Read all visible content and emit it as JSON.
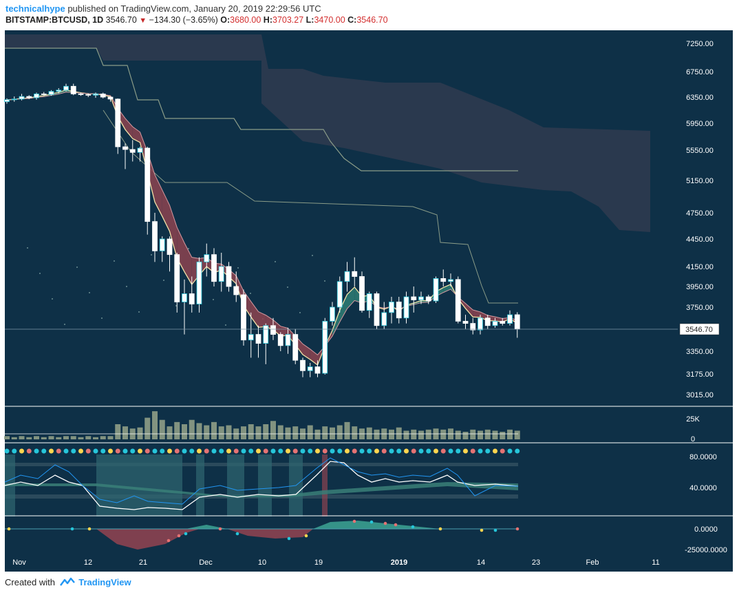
{
  "header": {
    "author": "technicalhype",
    "published_text": "published on TradingView.com, January 20, 2019 22:29:56 UTC",
    "symbol": "BITSTAMP:BTCUSD, 1D",
    "last": "3546.70",
    "change": "−134.30 (−3.65%)",
    "o_label": "O:",
    "o": "3680.00",
    "h_label": "H:",
    "h": "3703.27",
    "l_label": "L:",
    "l": "3470.00",
    "c_label": "C:",
    "c": "3546.70"
  },
  "footer": {
    "created_with": "Created with",
    "brand": "TradingView"
  },
  "colors": {
    "panel_bg": "#0e3047",
    "cloud": "#2d3b4f",
    "up_candle": "#ffffff",
    "down_candle": "#ffffff",
    "candle_border_up": "#26c6da",
    "ema_fill_up": "#2e7d74",
    "ema_fill_down": "#8c4350",
    "volume": "#8f9f86",
    "price_tag_bg": "#ffffff"
  },
  "chart_data": {
    "type": "candlestick",
    "symbol": "BITSTAMP:BTCUSD",
    "interval": "1D",
    "price_axis_ticks": [
      "7250.00",
      "6750.00",
      "6350.00",
      "5950.00",
      "5550.00",
      "5150.00",
      "4750.00",
      "4450.00",
      "4150.00",
      "3950.00",
      "3750.00",
      "3350.00",
      "3175.00",
      "3015.00"
    ],
    "last_price_tag": "3546.70",
    "volume_axis_ticks": [
      "25K",
      "0"
    ],
    "oscillator_axis_ticks": [
      "80.0000",
      "40.0000"
    ],
    "momentum_axis_ticks": [
      "0.0000",
      "-25000.0000"
    ],
    "x_tick_labels": [
      "Nov",
      "12",
      "21",
      "Dec",
      "10",
      "19",
      "2019",
      "14",
      "23",
      "Feb",
      "11"
    ],
    "candles": [
      [
        6280,
        6330,
        6250,
        6310
      ],
      [
        6310,
        6360,
        6280,
        6320
      ],
      [
        6320,
        6400,
        6300,
        6360
      ],
      [
        6360,
        6380,
        6320,
        6340
      ],
      [
        6340,
        6420,
        6310,
        6400
      ],
      [
        6400,
        6430,
        6370,
        6390
      ],
      [
        6390,
        6460,
        6370,
        6440
      ],
      [
        6440,
        6490,
        6410,
        6460
      ],
      [
        6460,
        6560,
        6440,
        6520
      ],
      [
        6520,
        6560,
        6380,
        6400
      ],
      [
        6400,
        6420,
        6370,
        6390
      ],
      [
        6390,
        6410,
        6350,
        6380
      ],
      [
        6380,
        6420,
        6340,
        6400
      ],
      [
        6400,
        6420,
        6330,
        6350
      ],
      [
        6350,
        6360,
        6280,
        6320
      ],
      [
        6320,
        6330,
        5500,
        5600
      ],
      [
        5600,
        5650,
        5300,
        5560
      ],
      [
        5560,
        5700,
        5400,
        5520
      ],
      [
        5520,
        5600,
        5400,
        5580
      ],
      [
        5580,
        5600,
        4500,
        4650
      ],
      [
        4650,
        4750,
        4200,
        4320
      ],
      [
        4320,
        4480,
        4200,
        4450
      ],
      [
        4450,
        4480,
        4100,
        4280
      ],
      [
        4280,
        4300,
        3700,
        3800
      ],
      [
        3800,
        4020,
        3500,
        3880
      ],
      [
        3880,
        4050,
        3700,
        3780
      ],
      [
        3780,
        4250,
        3700,
        4200
      ],
      [
        4200,
        4400,
        4050,
        4280
      ],
      [
        4280,
        4350,
        3950,
        4000
      ],
      [
        4000,
        4300,
        3900,
        4150
      ],
      [
        4150,
        4200,
        3900,
        3950
      ],
      [
        3950,
        4100,
        3800,
        3870
      ],
      [
        3870,
        3920,
        3400,
        3450
      ],
      [
        3450,
        3700,
        3300,
        3500
      ],
      [
        3500,
        3580,
        3300,
        3420
      ],
      [
        3420,
        3600,
        3250,
        3580
      ],
      [
        3580,
        3650,
        3450,
        3500
      ],
      [
        3500,
        3520,
        3350,
        3400
      ],
      [
        3400,
        3560,
        3330,
        3500
      ],
      [
        3500,
        3550,
        3250,
        3280
      ],
      [
        3280,
        3300,
        3150,
        3200
      ],
      [
        3200,
        3260,
        3150,
        3230
      ],
      [
        3230,
        3280,
        3150,
        3180
      ],
      [
        3180,
        3650,
        3170,
        3620
      ],
      [
        3620,
        3800,
        3580,
        3750
      ],
      [
        3750,
        4050,
        3700,
        4000
      ],
      [
        4000,
        4200,
        3900,
        4100
      ],
      [
        4100,
        4250,
        3950,
        4050
      ],
      [
        4050,
        4100,
        3700,
        3720
      ],
      [
        3720,
        3900,
        3650,
        3880
      ],
      [
        3880,
        3900,
        3550,
        3580
      ],
      [
        3580,
        3800,
        3550,
        3700
      ],
      [
        3700,
        3850,
        3600,
        3800
      ],
      [
        3800,
        3850,
        3600,
        3650
      ],
      [
        3650,
        3900,
        3600,
        3850
      ],
      [
        3850,
        3950,
        3700,
        3820
      ],
      [
        3820,
        3900,
        3780,
        3850
      ],
      [
        3850,
        3870,
        3780,
        3810
      ],
      [
        3810,
        4050,
        3790,
        4030
      ],
      [
        4030,
        4120,
        3950,
        4000
      ],
      [
        4000,
        4080,
        3950,
        4020
      ],
      [
        4020,
        4050,
        3600,
        3620
      ],
      [
        3620,
        3680,
        3550,
        3600
      ],
      [
        3600,
        3650,
        3500,
        3540
      ],
      [
        3540,
        3680,
        3500,
        3650
      ],
      [
        3650,
        3680,
        3550,
        3580
      ],
      [
        3580,
        3650,
        3560,
        3620
      ],
      [
        3620,
        3650,
        3580,
        3600
      ],
      [
        3600,
        3720,
        3580,
        3680
      ],
      [
        3680,
        3703.27,
        3470,
        3546.7
      ]
    ],
    "volume_bars": [
      3,
      2,
      3,
      2,
      3,
      2,
      3,
      2,
      3,
      3,
      2,
      3,
      2,
      3,
      3,
      14,
      12,
      10,
      11,
      20,
      26,
      18,
      12,
      16,
      14,
      18,
      15,
      13,
      16,
      12,
      13,
      10,
      12,
      14,
      12,
      14,
      17,
      13,
      11,
      12,
      10,
      13,
      9,
      12,
      11,
      13,
      16,
      12,
      10,
      11,
      9,
      10,
      9,
      11,
      8,
      9,
      8,
      9,
      10,
      9,
      10,
      8,
      7,
      9,
      8,
      9,
      8,
      7,
      9,
      8
    ]
  }
}
